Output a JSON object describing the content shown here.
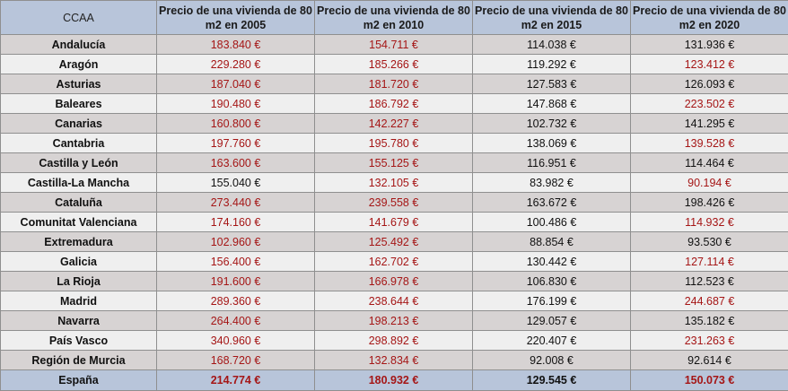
{
  "chart_data": {
    "type": "table",
    "columns": [
      "CCAA",
      "Precio de una vivienda de 80 m2 en 2005",
      "Precio de una vivienda de 80 m2 en 2010",
      "Precio de una vivienda de 80 m2 en 2015",
      "Precio de una vivienda de 80 m2 en 2020"
    ],
    "rows": [
      {
        "region": "Andalucía",
        "values": [
          "183.840 €",
          "154.711 €",
          "114.038 €",
          "131.936 €"
        ],
        "red": [
          true,
          true,
          false,
          false
        ]
      },
      {
        "region": "Aragón",
        "values": [
          "229.280 €",
          "185.266 €",
          "119.292 €",
          "123.412 €"
        ],
        "red": [
          true,
          true,
          false,
          true
        ]
      },
      {
        "region": "Asturias",
        "values": [
          "187.040 €",
          "181.720 €",
          "127.583 €",
          "126.093 €"
        ],
        "red": [
          true,
          true,
          false,
          false
        ]
      },
      {
        "region": "Baleares",
        "values": [
          "190.480 €",
          "186.792 €",
          "147.868 €",
          "223.502 €"
        ],
        "red": [
          true,
          true,
          false,
          true
        ]
      },
      {
        "region": "Canarias",
        "values": [
          "160.800 €",
          "142.227 €",
          "102.732 €",
          "141.295 €"
        ],
        "red": [
          true,
          true,
          false,
          false
        ]
      },
      {
        "region": "Cantabria",
        "values": [
          "197.760 €",
          "195.780 €",
          "138.069 €",
          "139.528 €"
        ],
        "red": [
          true,
          true,
          false,
          true
        ]
      },
      {
        "region": "Castilla y León",
        "values": [
          "163.600 €",
          "155.125 €",
          "116.951 €",
          "114.464 €"
        ],
        "red": [
          true,
          true,
          false,
          false
        ]
      },
      {
        "region": "Castilla-La Mancha",
        "values": [
          "155.040 €",
          "132.105 €",
          "83.982 €",
          "90.194 €"
        ],
        "red": [
          false,
          true,
          false,
          true
        ]
      },
      {
        "region": "Cataluña",
        "values": [
          "273.440 €",
          "239.558 €",
          "163.672 €",
          "198.426 €"
        ],
        "red": [
          true,
          true,
          false,
          false
        ]
      },
      {
        "region": "Comunitat Valenciana",
        "values": [
          "174.160 €",
          "141.679 €",
          "100.486 €",
          "114.932 €"
        ],
        "red": [
          true,
          true,
          false,
          true
        ]
      },
      {
        "region": "Extremadura",
        "values": [
          "102.960 €",
          "125.492 €",
          "88.854 €",
          "93.530 €"
        ],
        "red": [
          true,
          true,
          false,
          false
        ]
      },
      {
        "region": "Galicia",
        "values": [
          "156.400 €",
          "162.702 €",
          "130.442 €",
          "127.114 €"
        ],
        "red": [
          true,
          true,
          false,
          true
        ]
      },
      {
        "region": "La Rioja",
        "values": [
          "191.600 €",
          "166.978 €",
          "106.830 €",
          "112.523 €"
        ],
        "red": [
          true,
          true,
          false,
          false
        ]
      },
      {
        "region": "Madrid",
        "values": [
          "289.360 €",
          "238.644 €",
          "176.199 €",
          "244.687 €"
        ],
        "red": [
          true,
          true,
          false,
          true
        ]
      },
      {
        "region": "Navarra",
        "values": [
          "264.400 €",
          "198.213 €",
          "129.057 €",
          "135.182 €"
        ],
        "red": [
          true,
          true,
          false,
          false
        ]
      },
      {
        "region": "País Vasco",
        "values": [
          "340.960 €",
          "298.892 €",
          "220.407 €",
          "231.263 €"
        ],
        "red": [
          true,
          true,
          false,
          true
        ]
      },
      {
        "region": "Región de Murcia",
        "values": [
          "168.720 €",
          "132.834 €",
          "92.008 €",
          "92.614 €"
        ],
        "red": [
          true,
          true,
          false,
          false
        ]
      }
    ],
    "total": {
      "region": "España",
      "values": [
        "214.774 €",
        "180.932 €",
        "129.545 €",
        "150.073 €"
      ],
      "red": [
        true,
        true,
        false,
        true
      ]
    },
    "colors": {
      "header_bg": "#b8c5da",
      "row_dark": "#d7d3d3",
      "row_light": "#efefef",
      "red_text": "#a51616"
    }
  }
}
